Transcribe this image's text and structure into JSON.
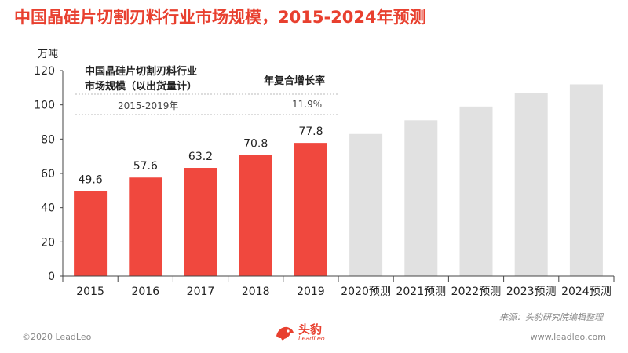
{
  "title": "中国晶硅片切割刃料行业市场规模，2015-2024年预测",
  "unit": "万吨",
  "cagr_box": {
    "title_line1": "中国晶硅片切割刃料行业",
    "title_line2": "市场规模（以出货量计）",
    "header": "年复合增长率",
    "period": "2015-2019年",
    "value": "11.9%"
  },
  "chart_data": {
    "type": "bar",
    "categories": [
      "2015",
      "2016",
      "2017",
      "2018",
      "2019",
      "2020预测",
      "2021预测",
      "2022预测",
      "2023预测",
      "2024预测"
    ],
    "values": [
      49.6,
      57.6,
      63.2,
      70.8,
      77.8,
      83,
      91,
      99,
      107,
      112
    ],
    "data_labels": [
      "49.6",
      "57.6",
      "63.2",
      "70.8",
      "77.8",
      "",
      "",
      "",
      "",
      ""
    ],
    "ylim": [
      0,
      120
    ],
    "yticks": [
      0,
      20,
      40,
      60,
      80,
      100,
      120
    ],
    "actual_color": "#f0483e",
    "forecast_color": "#e1e1e1",
    "actual_count": 5
  },
  "source": "来源：头豹研究院编辑整理",
  "footer": {
    "copyright": "©2020 LeadLeo",
    "website": "www.leadleo.com"
  },
  "logo": {
    "name": "头豹",
    "sub": "LeadLeo"
  },
  "colors": {
    "accent": "#e8402f",
    "muted": "#888888"
  }
}
